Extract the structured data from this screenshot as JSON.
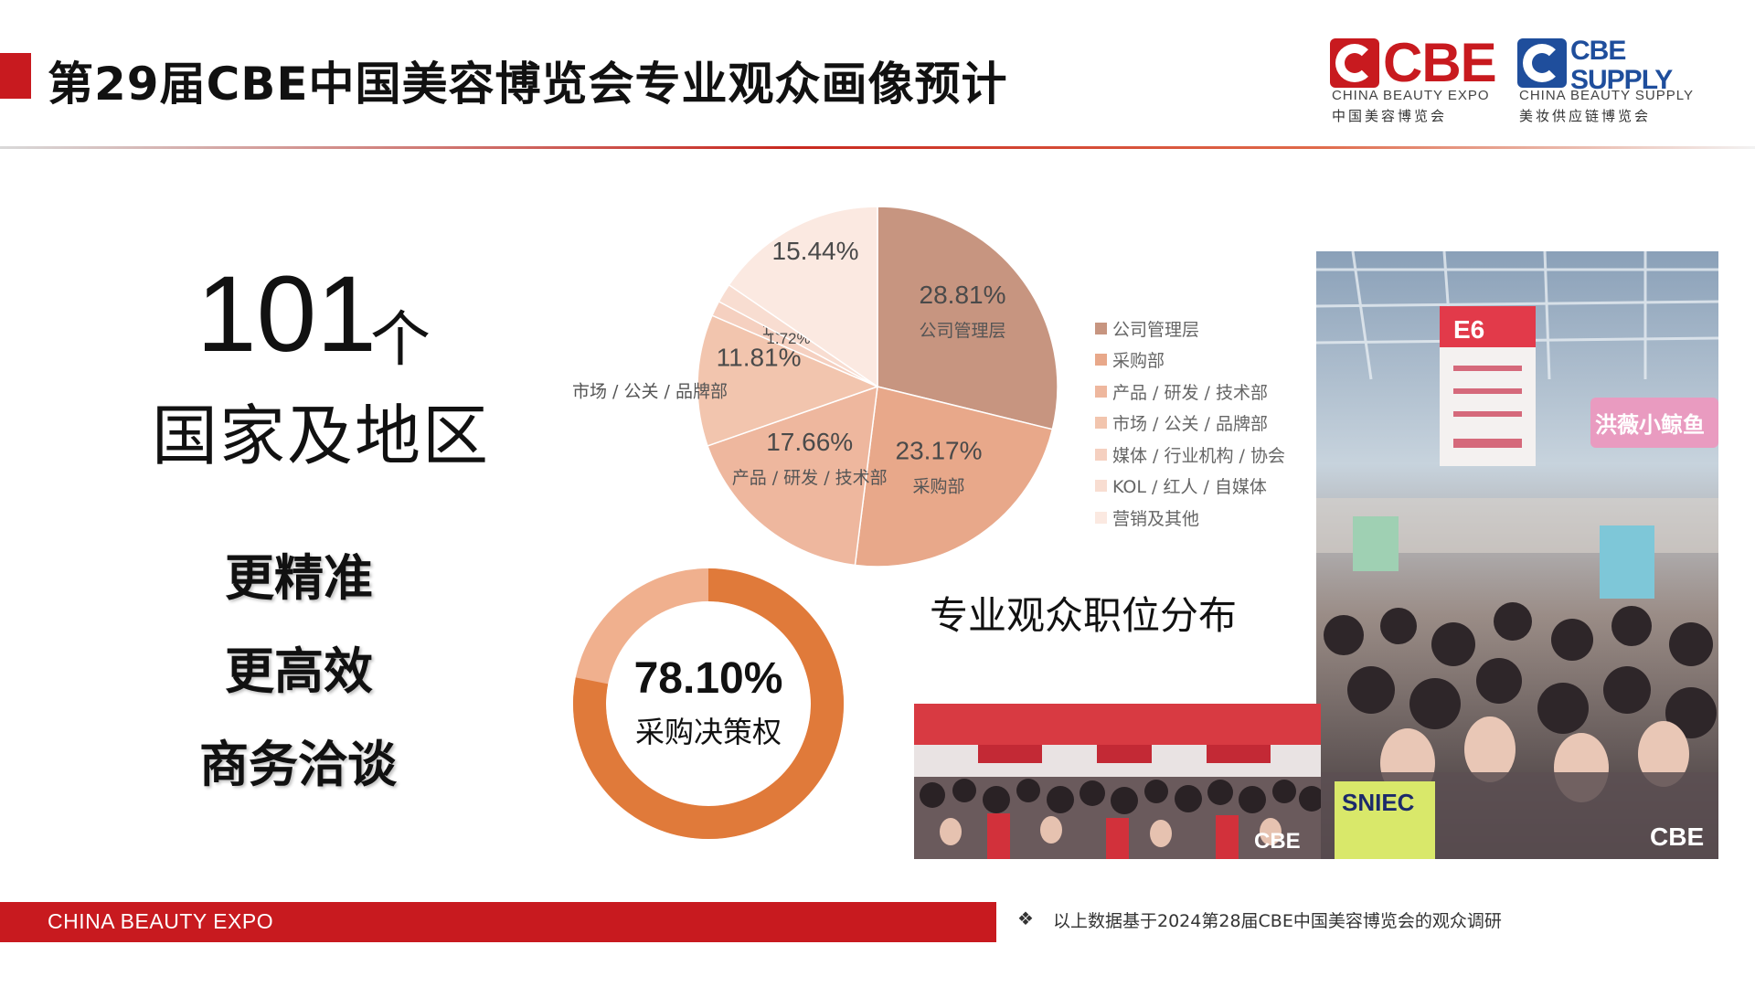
{
  "header": {
    "title": "第29届CBE中国美容博览会专业观众画像预计",
    "accent_color": "#c81a1f"
  },
  "logos": {
    "cbe": {
      "word": "CBE",
      "english": "CHINA BEAUTY EXPO",
      "chinese": "中国美容博览会"
    },
    "supply": {
      "word_line1": "CBE",
      "word_line2": "SUPPLY",
      "english": "CHINA BEAUTY SUPPLY",
      "chinese": "美妆供应链博览会"
    }
  },
  "left_panel": {
    "number": "101",
    "unit": "个",
    "label": "国家及地区",
    "features": [
      "更精准",
      "更高效",
      "商务洽谈"
    ]
  },
  "chart_data": [
    {
      "type": "pie",
      "caption": "专业观众职位分布",
      "legend_position": "right",
      "slices": [
        {
          "label": "公司管理层",
          "value": 28.81,
          "color": "#c79580",
          "pct_text": "28.81%",
          "slice_label": "公司管理层"
        },
        {
          "label": "采购部",
          "value": 23.17,
          "color": "#e8a88a",
          "pct_text": "23.17%",
          "slice_label": "采购部"
        },
        {
          "label": "产品 / 研发 / 技术部",
          "value": 17.66,
          "color": "#eeb79e",
          "pct_text": "17.66%",
          "slice_label": "产品 / 研发 / 技术部"
        },
        {
          "label": "市场 / 公关 / 品牌部",
          "value": 11.81,
          "color": "#f2c5ae",
          "pct_text": "11.81%",
          "slice_label": "市场 / 公关 / 品牌部"
        },
        {
          "label": "媒体 / 行业机构 / 协会",
          "value": 1.37,
          "color": "#f5d0c0",
          "pct_text": "1.37%",
          "slice_label": ""
        },
        {
          "label": "KOL / 红人 / 自媒体",
          "value": 1.72,
          "color": "#f8ddd1",
          "pct_text": "1.72%",
          "slice_label": ""
        },
        {
          "label": "营销及其他",
          "value": 15.44,
          "color": "#fbe9e1",
          "pct_text": "15.44%",
          "slice_label": ""
        }
      ]
    },
    {
      "type": "pie",
      "subtype": "donut",
      "value": 78.1,
      "value_text": "78.10%",
      "label": "采购决策权",
      "color_main": "#e07a3a",
      "color_rest": "#f0b08e"
    }
  ],
  "footer": {
    "bar_text": "CHINA BEAUTY EXPO",
    "note_icon": "❖",
    "note": "以上数据基于2024第28届CBE中国美容博览会的观众调研"
  },
  "photos": {
    "large": {
      "sign": "E6",
      "banner": "洪薇小鲸鱼",
      "wall": "SNIEC",
      "brand": "CBE",
      "icon": "expo-crowd-photo"
    },
    "small": {
      "brand": "CBE",
      "icon": "entrance-crowd-photo"
    }
  }
}
